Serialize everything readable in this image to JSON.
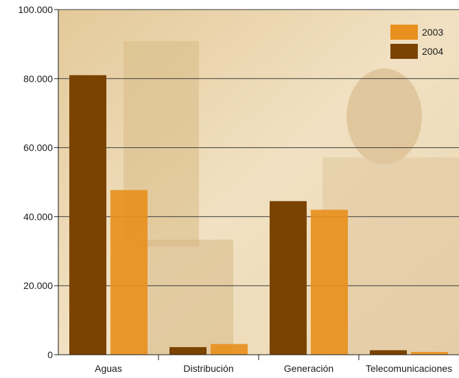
{
  "chart_data": {
    "type": "bar",
    "categories": [
      "Aguas",
      "Distribución",
      "Generación",
      "Telecomunicaciones"
    ],
    "series": [
      {
        "name": "2004",
        "values": [
          81000,
          2200,
          44500,
          1300
        ]
      },
      {
        "name": "2003",
        "values": [
          47700,
          3100,
          42000,
          800
        ]
      }
    ],
    "ylim": [
      0,
      100000
    ],
    "yticks": [
      0,
      20000,
      40000,
      60000,
      80000,
      100000
    ],
    "ytick_labels": [
      "0",
      "20.000",
      "40.000",
      "60.000",
      "80.000",
      "100.000"
    ],
    "legend": {
      "placement": "top-right",
      "entries": [
        "2003",
        "2004"
      ]
    },
    "grid": true,
    "colors": {
      "2003": "#e8901e",
      "2004": "#7a4300",
      "background": "#eedcb8",
      "photo_tone": "#d9bb86"
    }
  }
}
